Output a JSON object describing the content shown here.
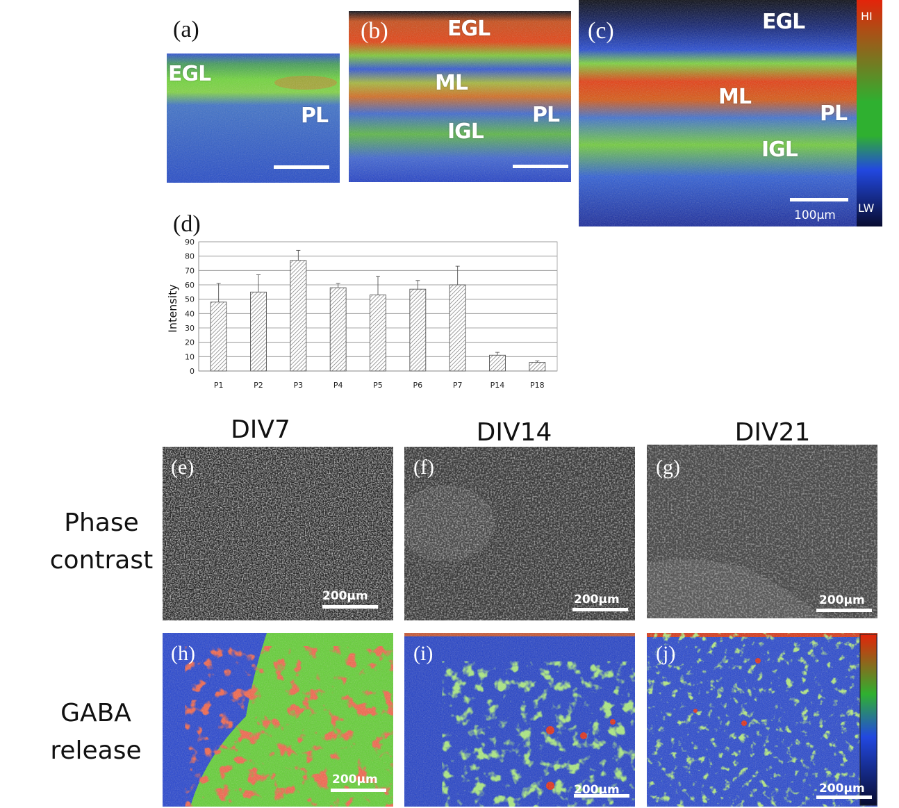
{
  "panels_top": {
    "a": {
      "label": "(a)",
      "layers": [
        "EGL",
        "PL"
      ]
    },
    "b": {
      "label": "(b)",
      "layers": [
        "EGL",
        "ML",
        "PL",
        "IGL"
      ]
    },
    "c": {
      "label": "(c)",
      "layers": [
        "EGL",
        "ML",
        "PL",
        "IGL"
      ],
      "scale": "100μm",
      "colorbar": {
        "high": "HI",
        "low": "LW"
      }
    }
  },
  "chart_label": "(d)",
  "chart_data": {
    "type": "bar",
    "categories": [
      "P1",
      "P2",
      "P3",
      "P4",
      "P5",
      "P6",
      "P7",
      "P14",
      "P18"
    ],
    "values": [
      48,
      55,
      77,
      58,
      53,
      57,
      60,
      11,
      6
    ],
    "errors": [
      13,
      12,
      7,
      3,
      13,
      6,
      13,
      2,
      1
    ],
    "ylabel": "Intensity",
    "ylim": [
      0,
      90
    ],
    "yticks": [
      0,
      10,
      20,
      30,
      40,
      50,
      60,
      70,
      80,
      90
    ],
    "grid": true,
    "bar_fill": "hatched"
  },
  "columns": [
    "DIV7",
    "DIV14",
    "DIV21"
  ],
  "rows": [
    [
      "Phase",
      "contrast"
    ],
    [
      "GABA",
      "release"
    ]
  ],
  "lower_panels": [
    "(e)",
    "(f)",
    "(g)",
    "(h)",
    "(i)",
    "(j)"
  ],
  "lower_scale": "200μm",
  "colors": {
    "high": "#e8280a",
    "mid": "#56d62a",
    "low": "#1c3fd8",
    "background": "#0a1550"
  }
}
